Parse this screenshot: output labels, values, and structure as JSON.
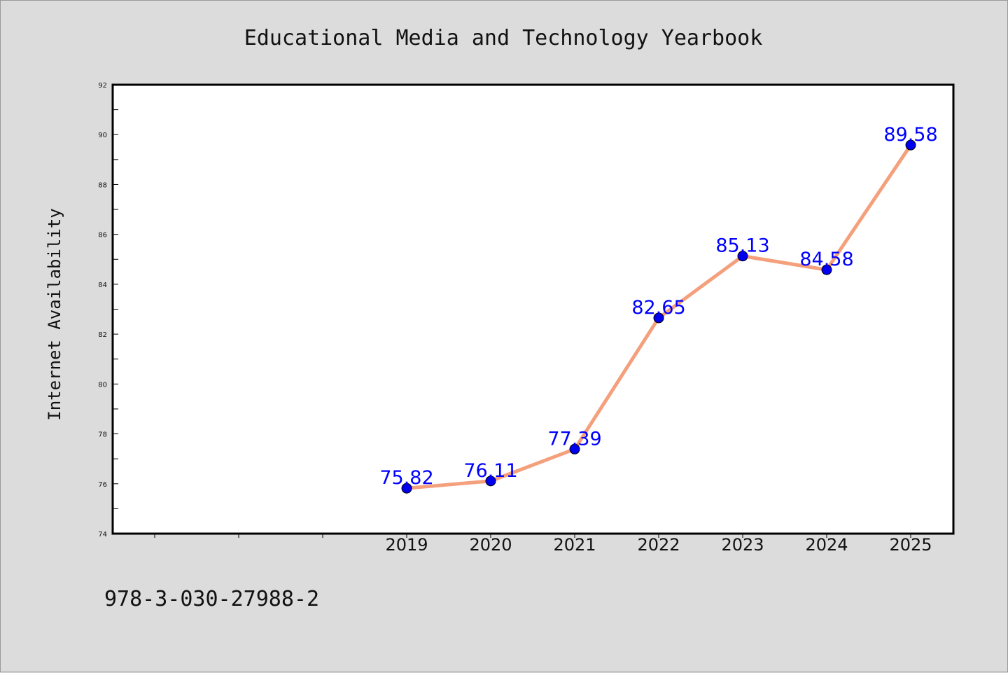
{
  "footer": {
    "isbn": "978-3-030-27988-2"
  },
  "colors": {
    "background": "#dcdcdc",
    "line": "#f4a07c",
    "marker": "#0000ee",
    "label": "#0000ff",
    "frame": "#000000"
  },
  "chart_data": {
    "type": "line",
    "title": "Educational Media and Technology Yearbook",
    "xlabel": "",
    "ylabel": "Internet Availability",
    "x_ticks": [
      "",
      "",
      "",
      "2019",
      "2020",
      "2021",
      "2022",
      "2023",
      "2024",
      "2025"
    ],
    "categories": [
      "2019",
      "2020",
      "2021",
      "2022",
      "2023",
      "2024",
      "2025"
    ],
    "values": [
      75.82,
      76.11,
      77.39,
      82.65,
      85.13,
      84.58,
      89.58
    ],
    "data_labels": [
      "75.82",
      "76.11",
      "77.39",
      "82.65",
      "85.13",
      "84.58",
      "89.58"
    ],
    "ylim": [
      74,
      92
    ],
    "y_ticks": [
      74,
      76,
      78,
      80,
      82,
      84,
      86,
      88,
      90,
      92
    ],
    "grid": false,
    "legend": "none"
  }
}
